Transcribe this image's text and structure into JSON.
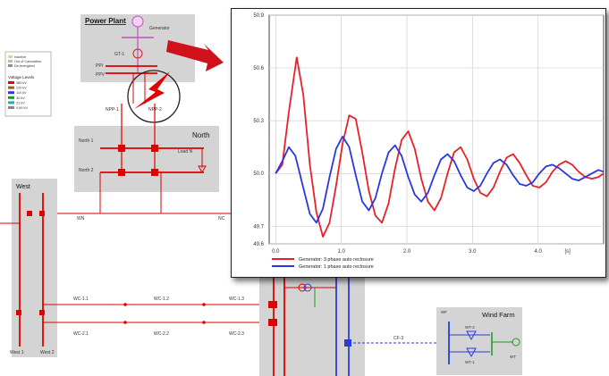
{
  "diagram": {
    "power_plant": {
      "title": "Power Plant",
      "generator": "Generator",
      "transformer": "GT-1",
      "bus_1": "PPI",
      "bus_2": "PPV",
      "line_1": "NPP-1",
      "line_2": "NPP-2"
    },
    "legend": {
      "items": [
        "Inactive",
        "Out of Calculation",
        "De-energized"
      ],
      "voltage_title": "Voltage Levels",
      "levels": [
        "380 kV",
        "220 kV",
        "110 kV",
        "30 kV",
        "21 kV",
        "0.69 kV"
      ],
      "level_colors": [
        "#e00000",
        "#a65a1e",
        "#2a3bd8",
        "#1a9b1a",
        "#11b0c8",
        "#888888"
      ]
    },
    "north": {
      "title": "North",
      "bus_1": "North 1",
      "bus_2": "North 2",
      "load": "Load N"
    },
    "west": {
      "title": "West",
      "bus_1": "West 1",
      "bus_2": "West 2"
    },
    "lines": {
      "wn": "WN",
      "nc": "NC",
      "wc11": "WC-1.1",
      "wc12": "WC-1.2",
      "wc13": "WC-1.3",
      "wc21": "WC-2.1",
      "wc22": "WC-2.2",
      "wc23": "WC-2.3",
      "cf": "CF-3"
    },
    "wind_farm": {
      "title": "Wind Farm",
      "bus": "WF",
      "turbine_1": "WT-2",
      "turbine_2": "WT-1",
      "gen": "WT"
    }
  },
  "chart_data": {
    "type": "line",
    "xlabel": "[s]",
    "xlim": [
      -0.1,
      5.0
    ],
    "ylim": [
      49.6,
      50.9
    ],
    "x_ticks": [
      0.0,
      1.0,
      2.0,
      3.0,
      4.0
    ],
    "x_tick_labels": [
      "0.0",
      "1.0",
      "2.0",
      "3.0",
      "4.0"
    ],
    "y_ticks": [
      49.6,
      49.7,
      50.0,
      50.3,
      50.6,
      50.9
    ],
    "y_tick_labels": [
      "49.6",
      "49.7",
      "50.0",
      "50.3",
      "50.6",
      "50.9"
    ],
    "grid": true,
    "legend_position": "bottom-left",
    "series": [
      {
        "name": "Generator: 3 phase auto reclosure",
        "color": "#e8202a",
        "x": [
          0.0,
          0.1,
          0.2,
          0.32,
          0.42,
          0.52,
          0.62,
          0.72,
          0.82,
          0.92,
          1.02,
          1.12,
          1.22,
          1.32,
          1.42,
          1.52,
          1.62,
          1.72,
          1.82,
          1.92,
          2.02,
          2.12,
          2.22,
          2.32,
          2.42,
          2.52,
          2.62,
          2.72,
          2.82,
          2.92,
          3.02,
          3.12,
          3.22,
          3.32,
          3.42,
          3.52,
          3.62,
          3.72,
          3.82,
          3.92,
          4.02,
          4.12,
          4.22,
          4.32,
          4.42,
          4.52,
          4.62,
          4.72,
          4.82,
          4.92,
          5.0
        ],
        "y": [
          50.0,
          50.05,
          50.35,
          50.66,
          50.45,
          50.05,
          49.78,
          49.64,
          49.72,
          49.93,
          50.17,
          50.33,
          50.31,
          50.12,
          49.9,
          49.76,
          49.72,
          49.83,
          50.03,
          50.19,
          50.24,
          50.14,
          49.97,
          49.84,
          49.79,
          49.86,
          50.0,
          50.12,
          50.15,
          50.08,
          49.97,
          49.89,
          49.87,
          49.92,
          50.01,
          50.09,
          50.11,
          50.06,
          49.99,
          49.93,
          49.92,
          49.95,
          50.01,
          50.05,
          50.07,
          50.05,
          50.01,
          49.98,
          49.97,
          49.98,
          50.0
        ]
      },
      {
        "name": "Generator: 1 phase auto reclosure",
        "color": "#2838e0",
        "x": [
          0.0,
          0.1,
          0.2,
          0.3,
          0.42,
          0.52,
          0.62,
          0.72,
          0.82,
          0.92,
          1.02,
          1.12,
          1.22,
          1.32,
          1.42,
          1.52,
          1.62,
          1.72,
          1.82,
          1.92,
          2.02,
          2.12,
          2.22,
          2.32,
          2.42,
          2.52,
          2.62,
          2.72,
          2.82,
          2.92,
          3.02,
          3.12,
          3.22,
          3.32,
          3.42,
          3.52,
          3.62,
          3.72,
          3.82,
          3.92,
          4.02,
          4.12,
          4.22,
          4.32,
          4.42,
          4.52,
          4.62,
          4.72,
          4.82,
          4.92,
          5.0
        ],
        "y": [
          50.0,
          50.07,
          50.15,
          50.1,
          49.92,
          49.77,
          49.72,
          49.8,
          49.98,
          50.14,
          50.21,
          50.15,
          49.99,
          49.84,
          49.79,
          49.86,
          50.0,
          50.12,
          50.16,
          50.1,
          49.98,
          49.88,
          49.84,
          49.89,
          49.99,
          50.08,
          50.11,
          50.07,
          49.99,
          49.92,
          49.9,
          49.93,
          50.0,
          50.06,
          50.08,
          50.05,
          49.99,
          49.94,
          49.93,
          49.95,
          50.0,
          50.04,
          50.05,
          50.03,
          50.0,
          49.97,
          49.96,
          49.98,
          50.0,
          50.02,
          50.01
        ]
      }
    ]
  }
}
